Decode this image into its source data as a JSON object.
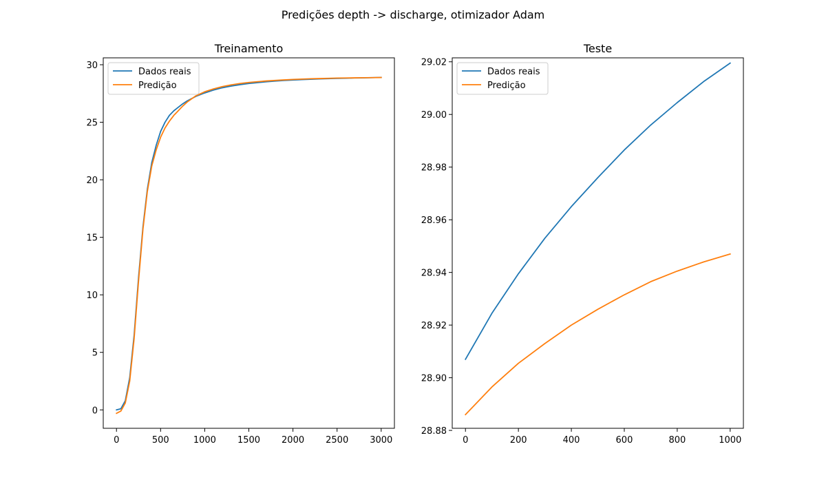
{
  "figure": {
    "suptitle": "Predições depth -> discharge, otimizador Adam"
  },
  "colors": {
    "real": "#1f77b4",
    "pred": "#ff7f0e",
    "axes": "#000000",
    "background": "#ffffff",
    "legend_border": "#cccccc"
  },
  "chart_data": [
    {
      "type": "line",
      "title": "Treinamento",
      "xlabel": "",
      "ylabel": "",
      "xlim": [
        -150,
        3150
      ],
      "ylim": [
        -1.6,
        30.6
      ],
      "xticks": [
        0,
        500,
        1000,
        1500,
        2000,
        2500,
        3000
      ],
      "xtick_labels": [
        "0",
        "500",
        "1000",
        "1500",
        "2000",
        "2500",
        "3000"
      ],
      "yticks": [
        0,
        5,
        10,
        15,
        20,
        25,
        30
      ],
      "ytick_labels": [
        "0",
        "5",
        "10",
        "15",
        "20",
        "25",
        "30"
      ],
      "grid": false,
      "legend": "top-left",
      "series": [
        {
          "name": "Dados reais",
          "color": "#1f77b4",
          "x": [
            0,
            50,
            100,
            150,
            200,
            250,
            300,
            350,
            400,
            450,
            500,
            550,
            600,
            650,
            700,
            750,
            800,
            900,
            1000,
            1100,
            1200,
            1300,
            1400,
            1500,
            1600,
            1700,
            1800,
            1900,
            2000,
            2100,
            2200,
            2300,
            2400,
            2500,
            2600,
            2700,
            2800,
            2900,
            3000
          ],
          "values": [
            0.0,
            0.1,
            0.8,
            2.8,
            6.5,
            11.5,
            15.9,
            19.2,
            21.5,
            23.0,
            24.2,
            25.0,
            25.6,
            26.0,
            26.3,
            26.6,
            26.85,
            27.25,
            27.55,
            27.8,
            28.0,
            28.15,
            28.27,
            28.37,
            28.45,
            28.52,
            28.58,
            28.63,
            28.67,
            28.71,
            28.74,
            28.77,
            28.79,
            28.81,
            28.83,
            28.85,
            28.86,
            28.88,
            28.9
          ]
        },
        {
          "name": "Predição",
          "color": "#ff7f0e",
          "x": [
            0,
            50,
            100,
            150,
            200,
            250,
            300,
            350,
            400,
            450,
            500,
            550,
            600,
            650,
            700,
            750,
            800,
            900,
            1000,
            1100,
            1200,
            1300,
            1400,
            1500,
            1600,
            1700,
            1800,
            1900,
            2000,
            2100,
            2200,
            2300,
            2400,
            2500,
            2600,
            2700,
            2800,
            2900,
            3000
          ],
          "values": [
            -0.3,
            -0.1,
            0.6,
            2.5,
            6.2,
            11.2,
            15.7,
            19.0,
            21.2,
            22.6,
            23.7,
            24.5,
            25.1,
            25.6,
            26.0,
            26.4,
            26.75,
            27.3,
            27.65,
            27.9,
            28.1,
            28.25,
            28.37,
            28.46,
            28.53,
            28.59,
            28.64,
            28.68,
            28.72,
            28.75,
            28.78,
            28.8,
            28.82,
            28.84,
            28.85,
            28.86,
            28.87,
            28.88,
            28.89
          ]
        }
      ]
    },
    {
      "type": "line",
      "title": "Teste",
      "xlabel": "",
      "ylabel": "",
      "xlim": [
        -50,
        1050
      ],
      "ylim": [
        28.8808,
        29.0215
      ],
      "xticks": [
        0,
        200,
        400,
        600,
        800,
        1000
      ],
      "xtick_labels": [
        "0",
        "200",
        "400",
        "600",
        "800",
        "1000"
      ],
      "yticks": [
        28.88,
        28.9,
        28.92,
        28.94,
        28.96,
        28.98,
        29.0,
        29.02
      ],
      "ytick_labels": [
        "28.88",
        "28.90",
        "28.92",
        "28.94",
        "28.96",
        "28.98",
        "29.00",
        "29.02"
      ],
      "grid": false,
      "legend": "top-left",
      "series": [
        {
          "name": "Dados reais",
          "color": "#1f77b4",
          "x": [
            0,
            100,
            200,
            300,
            400,
            500,
            600,
            700,
            800,
            900,
            1000
          ],
          "values": [
            28.907,
            28.9245,
            28.9395,
            28.953,
            28.965,
            28.976,
            28.9865,
            28.996,
            29.0045,
            29.0125,
            29.0195
          ]
        },
        {
          "name": "Predição",
          "color": "#ff7f0e",
          "x": [
            0,
            100,
            200,
            300,
            400,
            500,
            600,
            700,
            800,
            900,
            1000
          ],
          "values": [
            28.886,
            28.8965,
            28.9055,
            28.913,
            28.92,
            28.926,
            28.9315,
            28.9365,
            28.9405,
            28.944,
            28.947
          ]
        }
      ]
    }
  ]
}
